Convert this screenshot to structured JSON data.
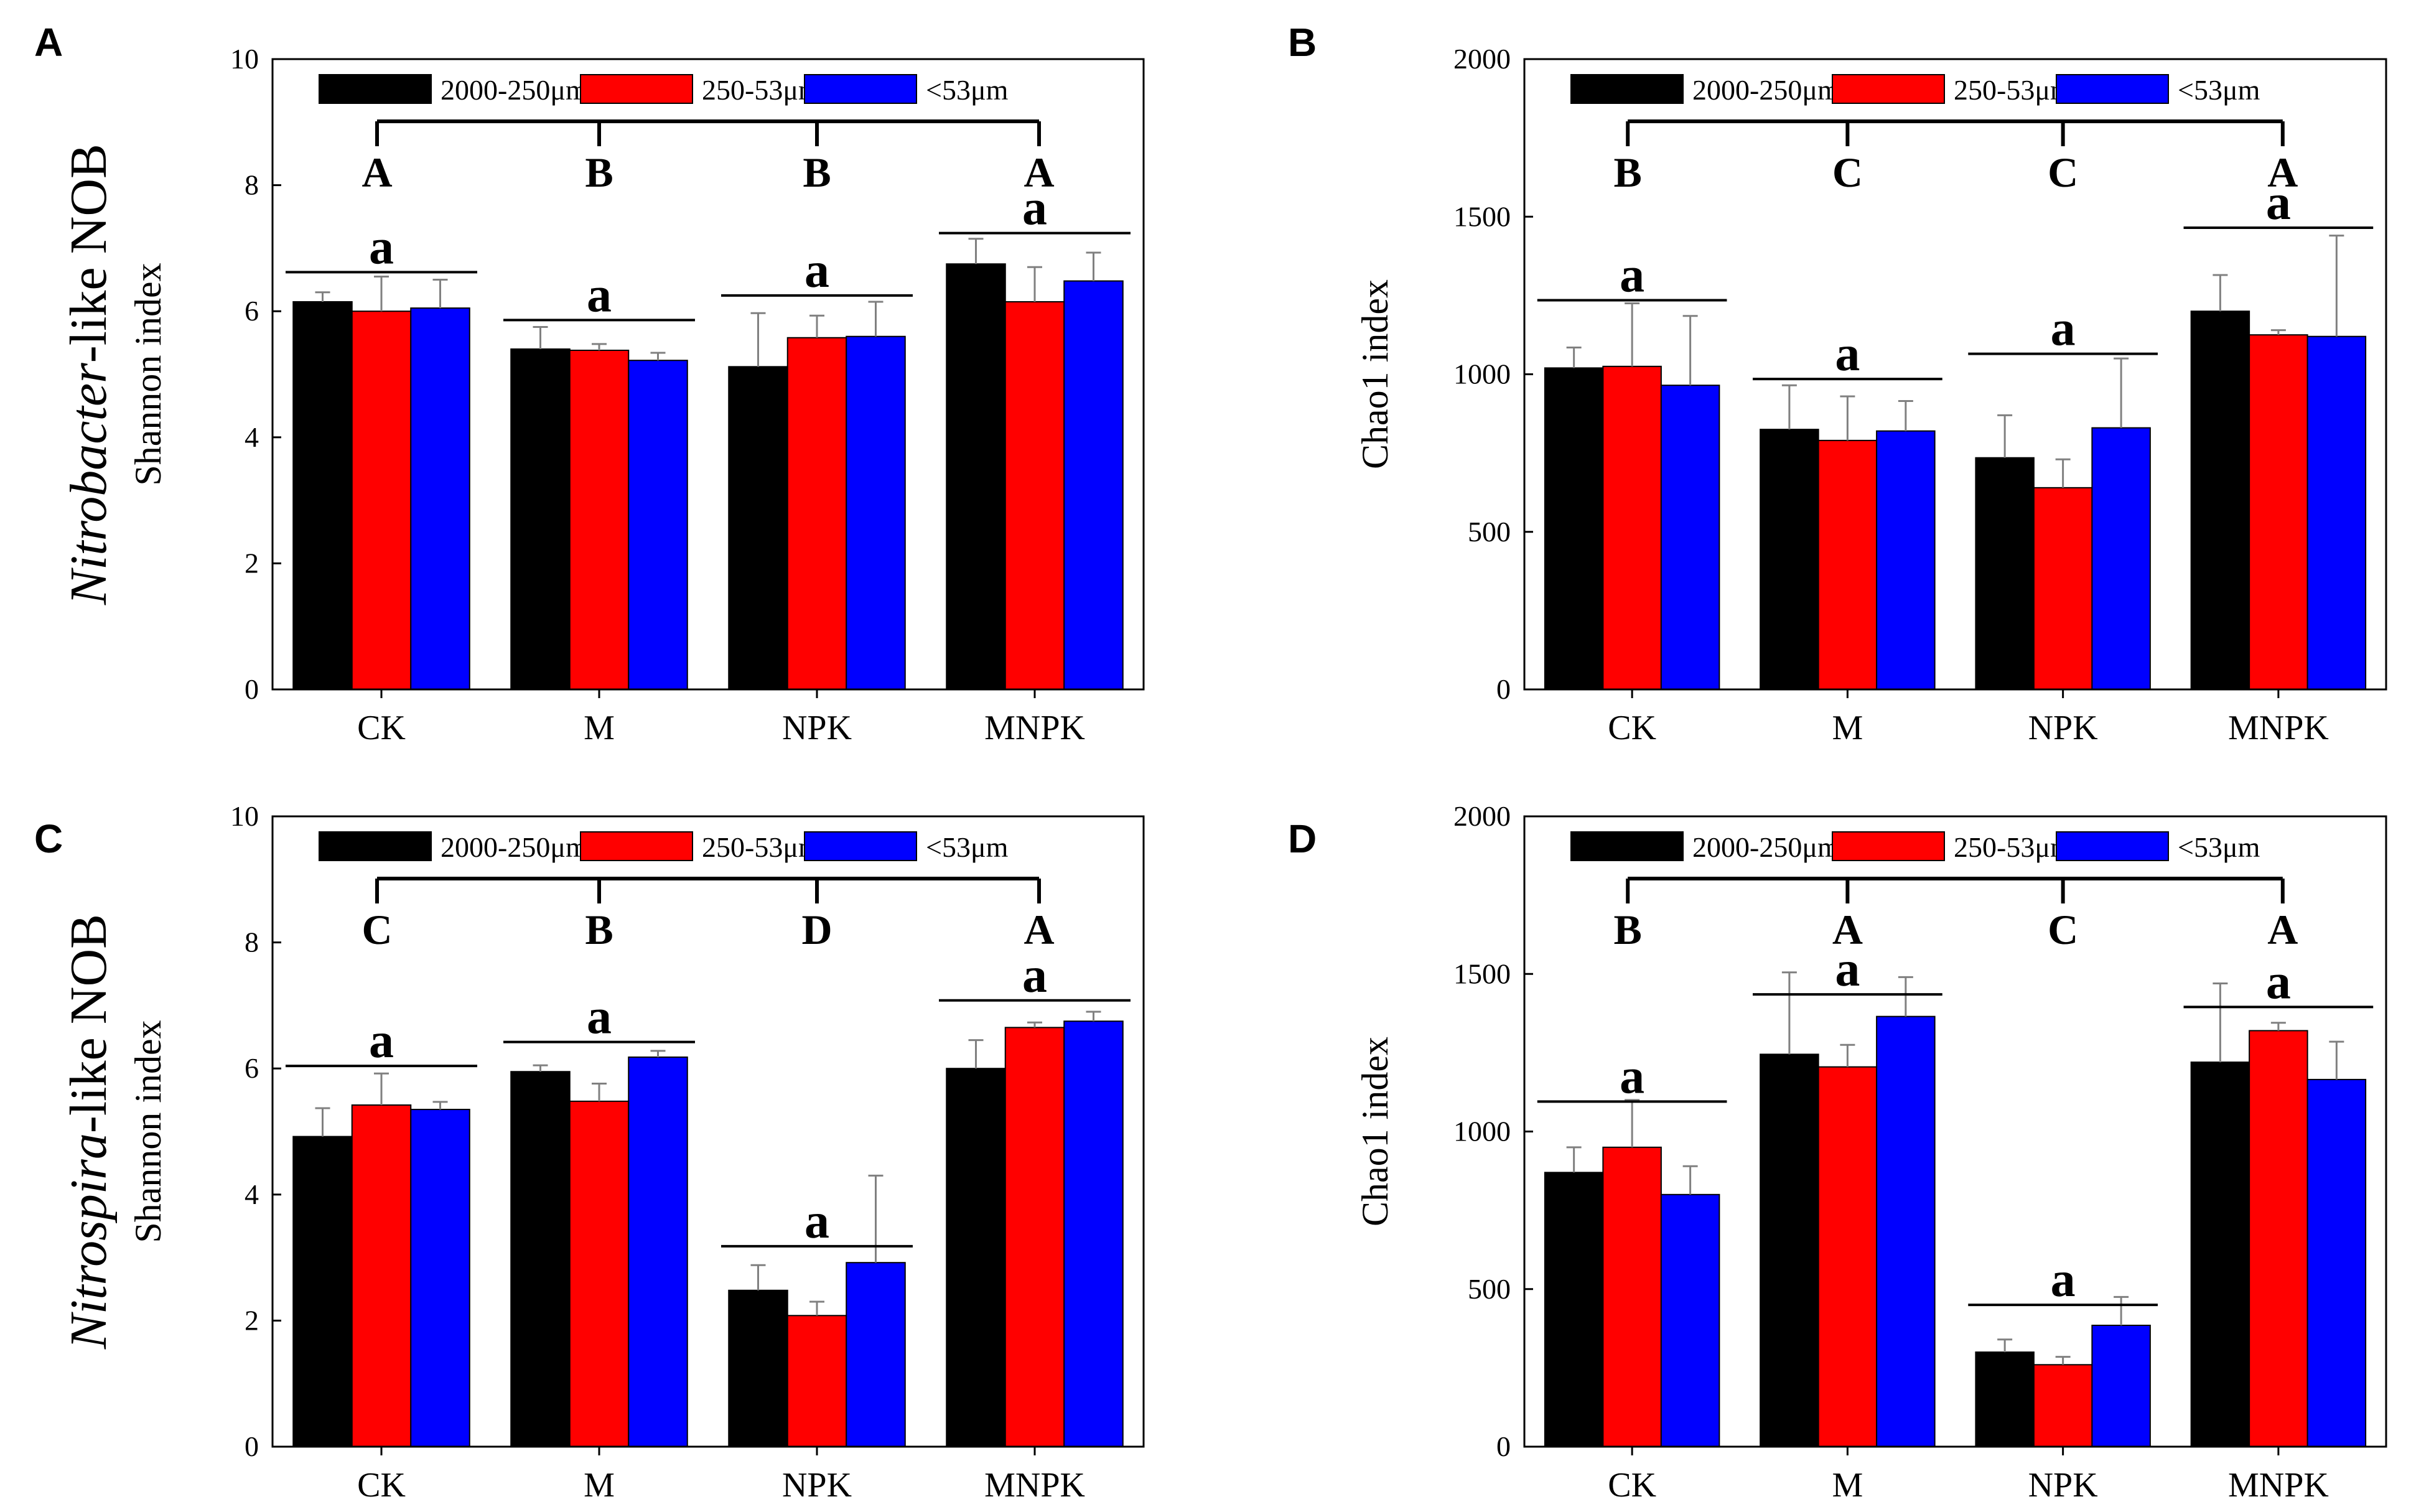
{
  "legend": {
    "series_names": [
      "2000-250μm",
      "250-53μm",
      "<53μm"
    ],
    "colors": [
      "#000000",
      "#ff0000",
      "#0000ff"
    ]
  },
  "chart_data": [
    {
      "panel": "A",
      "type": "bar",
      "ylabel_italic": "Nitrobacter",
      "ylabel_rest": "-like NOB",
      "ylabel_sub": "Shannon index",
      "ylabel": "",
      "ylim": [
        0,
        10
      ],
      "yticks": [
        0,
        2,
        4,
        6,
        8,
        10
      ],
      "categories": [
        "CK",
        "M",
        "NPK",
        "MNPK"
      ],
      "series": [
        {
          "name": "2000-250μm",
          "values": [
            6.15,
            5.4,
            5.12,
            6.75
          ],
          "errors": [
            0.15,
            0.35,
            0.85,
            0.4
          ]
        },
        {
          "name": "250-53μm",
          "values": [
            6.0,
            5.38,
            5.58,
            6.15
          ],
          "errors": [
            0.55,
            0.1,
            0.35,
            0.55
          ]
        },
        {
          "name": "<53μm",
          "values": [
            6.05,
            5.22,
            5.6,
            6.48
          ],
          "errors": [
            0.45,
            0.12,
            0.55,
            0.45
          ]
        }
      ],
      "group_letters": [
        "A",
        "B",
        "B",
        "A"
      ],
      "within_letters": [
        "a",
        "a",
        "a",
        "a"
      ],
      "within_line_levels": [
        6.62,
        5.86,
        6.25,
        7.24
      ]
    },
    {
      "panel": "B",
      "type": "bar",
      "ylabel": "Chao1 index",
      "ylim": [
        0,
        2000
      ],
      "yticks": [
        0,
        500,
        1000,
        1500,
        2000
      ],
      "categories": [
        "CK",
        "M",
        "NPK",
        "MNPK"
      ],
      "series": [
        {
          "name": "2000-250μm",
          "values": [
            1020,
            825,
            735,
            1200
          ],
          "errors": [
            65,
            140,
            135,
            115
          ]
        },
        {
          "name": "250-53μm",
          "values": [
            1025,
            790,
            640,
            1125
          ],
          "errors": [
            200,
            140,
            90,
            15
          ]
        },
        {
          "name": "<53μm",
          "values": [
            965,
            820,
            830,
            1120
          ],
          "errors": [
            220,
            95,
            220,
            320
          ]
        }
      ],
      "group_letters": [
        "B",
        "C",
        "C",
        "A"
      ],
      "within_letters": [
        "a",
        "a",
        "a",
        "a"
      ],
      "within_line_levels": [
        1235,
        985,
        1065,
        1465
      ]
    },
    {
      "panel": "C",
      "type": "bar",
      "ylabel_italic": "Nitrospira",
      "ylabel_rest": "-like NOB",
      "ylabel_sub": "Shannon index",
      "ylabel": "",
      "ylim": [
        0,
        10
      ],
      "yticks": [
        0,
        2,
        4,
        6,
        8,
        10
      ],
      "categories": [
        "CK",
        "M",
        "NPK",
        "MNPK"
      ],
      "series": [
        {
          "name": "2000-250μm",
          "values": [
            4.92,
            5.95,
            2.48,
            6.0
          ],
          "errors": [
            0.45,
            0.1,
            0.4,
            0.45
          ]
        },
        {
          "name": "250-53μm",
          "values": [
            5.42,
            5.48,
            2.08,
            6.65
          ],
          "errors": [
            0.5,
            0.28,
            0.22,
            0.08
          ]
        },
        {
          "name": "<53μm",
          "values": [
            5.35,
            6.18,
            2.92,
            6.75
          ],
          "errors": [
            0.12,
            0.1,
            1.38,
            0.15
          ]
        }
      ],
      "group_letters": [
        "C",
        "B",
        "D",
        "A"
      ],
      "within_letters": [
        "a",
        "a",
        "a",
        "a"
      ],
      "within_line_levels": [
        6.04,
        6.42,
        3.18,
        7.08
      ]
    },
    {
      "panel": "D",
      "type": "bar",
      "ylabel": "Chao1 index",
      "ylim": [
        0,
        2000
      ],
      "yticks": [
        0,
        500,
        1000,
        1500,
        2000
      ],
      "categories": [
        "CK",
        "M",
        "NPK",
        "MNPK"
      ],
      "series": [
        {
          "name": "2000-250μm",
          "values": [
            870,
            1245,
            300,
            1220
          ],
          "errors": [
            80,
            260,
            40,
            250
          ]
        },
        {
          "name": "250-53μm",
          "values": [
            950,
            1205,
            260,
            1320
          ],
          "errors": [
            150,
            70,
            25,
            25
          ]
        },
        {
          "name": "<53μm",
          "values": [
            800,
            1365,
            385,
            1165
          ],
          "errors": [
            90,
            125,
            90,
            120
          ]
        }
      ],
      "group_letters": [
        "B",
        "A",
        "C",
        "A"
      ],
      "within_letters": [
        "a",
        "a",
        "a",
        "a"
      ],
      "within_line_levels": [
        1095,
        1435,
        450,
        1395
      ]
    }
  ]
}
